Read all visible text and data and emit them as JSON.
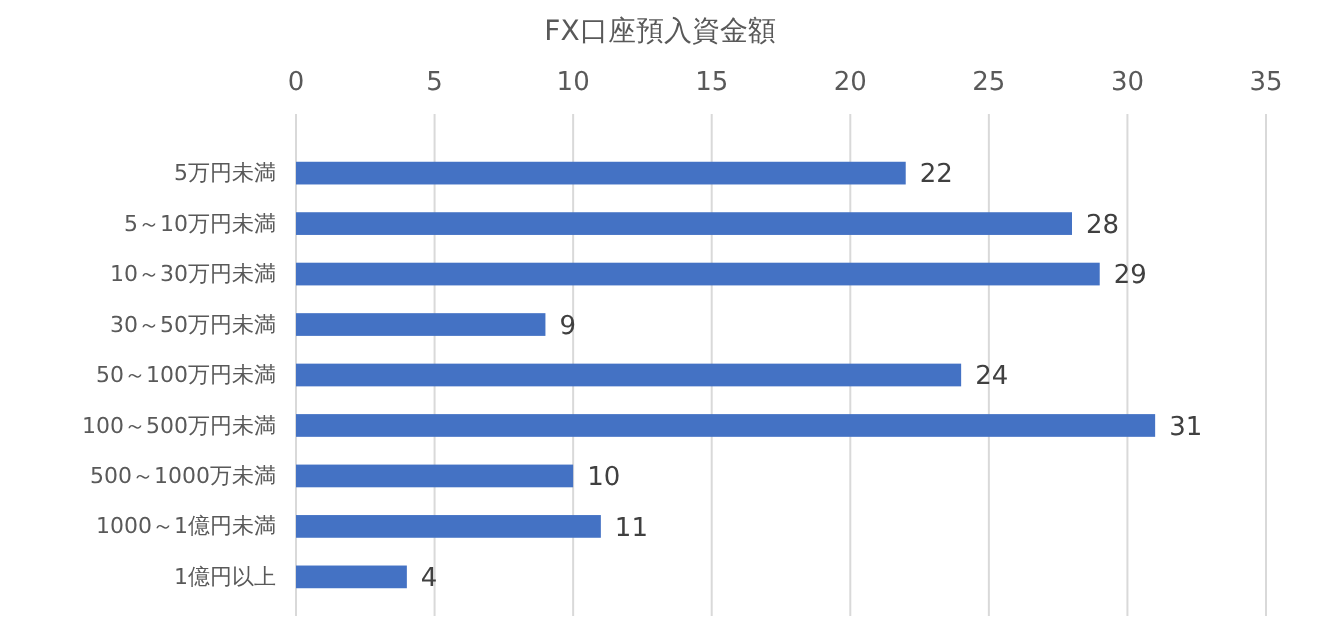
{
  "chart_data": {
    "type": "bar",
    "orientation": "horizontal",
    "title": "FX口座預入資金額",
    "categories": [
      "5万円未満",
      "5～10万円未満",
      "10～30万円未満",
      "30～50万円未満",
      "50～100万円未満",
      "100～500万円未満",
      "500～1000万未満",
      "1000～1億円未満",
      "1億円以上"
    ],
    "values": [
      22,
      28,
      29,
      9,
      24,
      31,
      10,
      11,
      4
    ],
    "color": "#4472c4",
    "xlim": [
      0,
      35
    ],
    "xticks": [
      0,
      5,
      10,
      15,
      20,
      25,
      30,
      35
    ],
    "grid": "x",
    "data_labels": true
  }
}
